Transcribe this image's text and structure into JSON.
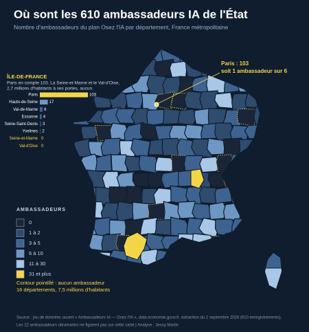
{
  "header": {
    "title": "Où sont les 610 ambassadeurs IA de l'État",
    "subtitle": "Nombre d'ambassadeurs du plan Osez l'IA par département, France métropolitaine"
  },
  "callout": {
    "line1": "Paris : 103",
    "line2": "soit 1 ambassadeur sur 6"
  },
  "chart_data": {
    "type": "bar",
    "orientation": "horizontal",
    "title": "ÎLE-DE-FRANCE",
    "subtitle_lines": [
      "Paris en compte 103. La Seine-et-Marne et le Val-d'Oise,",
      "2,7 millions d'habitants à ses portes, aucun."
    ],
    "categories": [
      "Paris",
      "Hauts-de-Seine",
      "Val-de-Marne",
      "Essonne",
      "Seine-Saint-Denis",
      "Yvelines",
      "Seine-et-Marne",
      "Val-d'Oise"
    ],
    "values": [
      103,
      17,
      6,
      4,
      3,
      2,
      0,
      0
    ],
    "colors": [
      "#f5d548",
      "#6f97c4",
      "#3e6391",
      "#3e6391",
      "#2f4b6e",
      "#2f4b6e",
      "#1a2638",
      "#1a2638"
    ],
    "label_colors": [
      "#ffffff",
      "#ffffff",
      "#ffffff",
      "#ffffff",
      "#ffffff",
      "#ffffff",
      "#f5d548",
      "#f5d548"
    ]
  },
  "legend": {
    "title": "AMBASSADEURS",
    "items": [
      {
        "label": "0",
        "color": "#1a2638"
      },
      {
        "label": "1 à 2",
        "color": "#2f4b6e"
      },
      {
        "label": "3 à 5",
        "color": "#3e6391"
      },
      {
        "label": "6 à 10",
        "color": "#6f97c4"
      },
      {
        "label": "11 à 30",
        "color": "#a9c7e6"
      },
      {
        "label": "31 et plus",
        "color": "#f5d548"
      }
    ],
    "note_lines": [
      "Contour pointillé : aucun ambassadeur",
      "16 départements, 7,5 millions d'habitants"
    ]
  },
  "footer": {
    "source": "Source : jeu de données ouvert « Ambassadeurs IA — Osez l'IA », data.economie.gouv.fr, extraction du 2 septembre 2026 (610 enregistrements).",
    "note": "Les 22 ambassadeurs ultramarins ne figurent pas sur cette carte  |  Analyse : Jessy Martin"
  }
}
